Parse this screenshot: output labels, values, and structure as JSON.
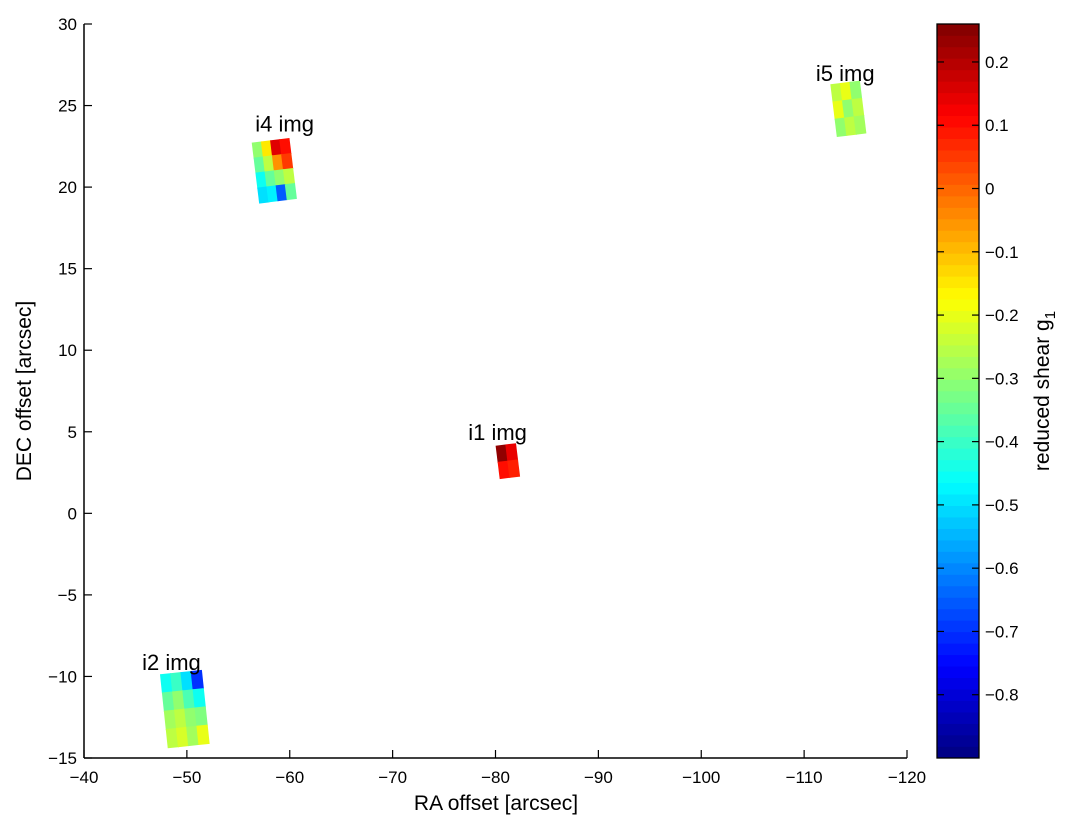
{
  "chart_data": {
    "type": "scatter",
    "xlabel": "RA offset [arcsec]",
    "ylabel": "DEC offset [arcsec]",
    "xlim": [
      -40,
      -120
    ],
    "ylim": [
      -15,
      30
    ],
    "xticks": [
      -40,
      -50,
      -60,
      -70,
      -80,
      -90,
      -100,
      -110,
      -120
    ],
    "yticks": [
      30,
      25,
      20,
      15,
      10,
      5,
      0,
      -5,
      -10,
      -15
    ],
    "grid": false,
    "colorbar": {
      "label_main": "reduced shear g",
      "label_subscript": "1",
      "range": [
        -0.9,
        0.26
      ],
      "ticks": [
        0.2,
        0.1,
        0,
        -0.1,
        -0.2,
        -0.3,
        -0.4,
        -0.5,
        -0.6,
        -0.7,
        -0.8
      ],
      "colormap": "jet",
      "levels": 64
    },
    "patches": [
      {
        "label": "i4 img",
        "center": [
          -58.5,
          21.0
        ],
        "width": 3.6,
        "height": 3.7,
        "tilt_deg": -7,
        "mean_g1": -0.3,
        "label_pos": [
          -59.5,
          23.4
        ],
        "grid": [
          [
            -0.3,
            -0.15,
            0.15,
            0.1
          ],
          [
            -0.35,
            -0.25,
            -0.05,
            0.05
          ],
          [
            -0.45,
            -0.35,
            -0.3,
            -0.25
          ],
          [
            -0.5,
            -0.48,
            -0.65,
            -0.35
          ]
        ]
      },
      {
        "label": "i5 img",
        "center": [
          -114.3,
          24.8
        ],
        "width": 2.8,
        "height": 3.2,
        "tilt_deg": -7,
        "mean_g1": -0.25,
        "label_pos": [
          -114.0,
          26.5
        ],
        "grid": [
          [
            -0.25,
            -0.2,
            -0.3
          ],
          [
            -0.2,
            -0.3,
            -0.25
          ],
          [
            -0.3,
            -0.25,
            -0.28
          ]
        ]
      },
      {
        "label": "i1 img",
        "center": [
          -81.2,
          3.2
        ],
        "width": 1.9,
        "height": 2.0,
        "tilt_deg": -7,
        "mean_g1": 0.12,
        "label_pos": [
          -80.2,
          4.5
        ],
        "grid": [
          [
            0.24,
            0.14
          ],
          [
            0.1,
            0.08
          ]
        ]
      },
      {
        "label": "i2 img",
        "center": [
          -49.8,
          -12.0
        ],
        "width": 4.0,
        "height": 4.5,
        "tilt_deg": -6,
        "mean_g1": -0.35,
        "label_pos": [
          -48.5,
          -9.6
        ],
        "grid": [
          [
            -0.45,
            -0.4,
            -0.5,
            -0.7
          ],
          [
            -0.35,
            -0.3,
            -0.38,
            -0.45
          ],
          [
            -0.28,
            -0.25,
            -0.3,
            -0.32
          ],
          [
            -0.25,
            -0.22,
            -0.28,
            -0.2
          ]
        ]
      }
    ]
  }
}
